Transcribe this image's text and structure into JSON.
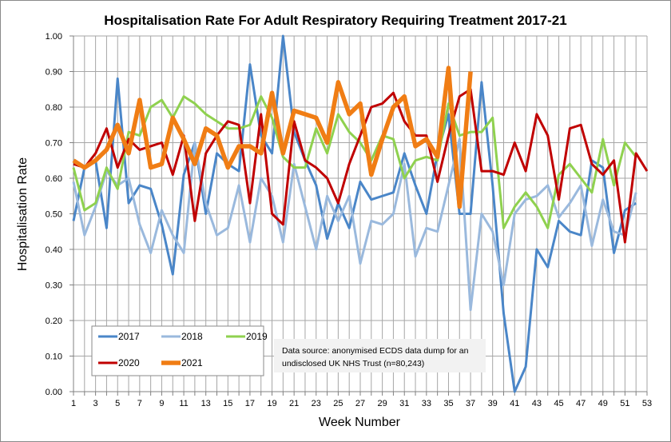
{
  "chart_data": {
    "type": "line",
    "title": "Hospitalisation  Rate For Adult Respiratory Requiring Treatment 2017-21",
    "xlabel": "Week Number",
    "ylabel": "Hospitalisation Rate",
    "xlim": [
      1,
      53
    ],
    "ylim": [
      0,
      1
    ],
    "yticks": [
      "0.00",
      "0.10",
      "0.20",
      "0.30",
      "0.40",
      "0.50",
      "0.60",
      "0.70",
      "0.80",
      "0.90",
      "1.00"
    ],
    "xticks": [
      "1",
      "3",
      "5",
      "7",
      "9",
      "11",
      "13",
      "15",
      "17",
      "19",
      "21",
      "23",
      "25",
      "27",
      "29",
      "31",
      "33",
      "35",
      "37",
      "39",
      "41",
      "43",
      "45",
      "47",
      "49",
      "51",
      "53"
    ],
    "grid": true,
    "legend_placement": "bottom-left",
    "annotation": [
      "Data source: anonymised ECDS data dump for an",
      "undisclosed UK NHS Trust (n=80,243)"
    ],
    "series": [
      {
        "name": "2017",
        "color": "#4a86c8",
        "width": 3,
        "values": [
          0.48,
          0.63,
          0.65,
          0.46,
          0.88,
          0.53,
          0.58,
          0.57,
          0.47,
          0.33,
          0.61,
          0.7,
          0.5,
          0.67,
          0.64,
          0.62,
          0.92,
          0.72,
          0.67,
          1.0,
          0.73,
          0.65,
          0.58,
          0.43,
          0.53,
          0.46,
          0.59,
          0.54,
          0.55,
          0.56,
          0.67,
          0.58,
          0.5,
          0.67,
          0.78,
          0.5,
          0.5,
          0.87,
          0.58,
          0.22,
          0.0,
          0.07,
          0.4,
          0.35,
          0.48,
          0.45,
          0.44,
          0.65,
          0.63,
          0.39,
          0.51,
          0.53
        ]
      },
      {
        "name": "2018",
        "color": "#9ab9dd",
        "width": 3,
        "values": [
          0.59,
          0.44,
          0.52,
          0.62,
          0.58,
          0.6,
          0.47,
          0.39,
          0.51,
          0.44,
          0.39,
          0.7,
          0.53,
          0.44,
          0.46,
          0.58,
          0.42,
          0.6,
          0.55,
          0.42,
          0.64,
          0.52,
          0.4,
          0.55,
          0.48,
          0.55,
          0.36,
          0.48,
          0.47,
          0.5,
          0.64,
          0.38,
          0.46,
          0.45,
          0.58,
          0.71,
          0.23,
          0.5,
          0.45,
          0.3,
          0.5,
          0.54,
          0.55,
          0.58,
          0.49,
          0.53,
          0.58,
          0.41,
          0.54,
          0.45,
          0.44,
          0.56
        ]
      },
      {
        "name": "2019",
        "color": "#8fd14f",
        "width": 3,
        "values": [
          0.63,
          0.51,
          0.53,
          0.63,
          0.57,
          0.73,
          0.72,
          0.8,
          0.82,
          0.77,
          0.83,
          0.81,
          0.78,
          0.76,
          0.74,
          0.74,
          0.75,
          0.83,
          0.77,
          0.66,
          0.63,
          0.63,
          0.74,
          0.67,
          0.78,
          0.73,
          0.7,
          0.65,
          0.72,
          0.71,
          0.6,
          0.65,
          0.66,
          0.65,
          0.81,
          0.72,
          0.73,
          0.73,
          0.77,
          0.46,
          0.52,
          0.56,
          0.52,
          0.46,
          0.61,
          0.64,
          0.6,
          0.56,
          0.71,
          0.58,
          0.7,
          0.66
        ]
      },
      {
        "name": "2020",
        "color": "#c00000",
        "width": 3,
        "values": [
          0.64,
          0.63,
          0.67,
          0.74,
          0.63,
          0.71,
          0.68,
          0.69,
          0.7,
          0.61,
          0.72,
          0.48,
          0.67,
          0.72,
          0.76,
          0.75,
          0.53,
          0.78,
          0.5,
          0.47,
          0.76,
          0.65,
          0.63,
          0.6,
          0.53,
          0.64,
          0.72,
          0.8,
          0.81,
          0.84,
          0.76,
          0.72,
          0.72,
          0.59,
          0.72,
          0.83,
          0.85,
          0.62,
          0.62,
          0.61,
          0.7,
          0.62,
          0.78,
          0.72,
          0.54,
          0.74,
          0.75,
          0.64,
          0.61,
          0.65,
          0.42,
          0.67,
          0.62
        ]
      },
      {
        "name": "2021",
        "color": "#f07d14",
        "width": 5.5,
        "values": [
          0.65,
          0.63,
          0.65,
          0.68,
          0.75,
          0.67,
          0.82,
          0.63,
          0.64,
          0.77,
          0.71,
          0.64,
          0.74,
          0.72,
          0.63,
          0.69,
          0.69,
          0.67,
          0.84,
          0.67,
          0.79,
          0.78,
          0.77,
          0.7,
          0.87,
          0.78,
          0.81,
          0.61,
          0.71,
          0.8,
          0.83,
          0.69,
          0.71,
          0.66,
          0.91,
          0.52,
          0.9
        ]
      }
    ]
  }
}
